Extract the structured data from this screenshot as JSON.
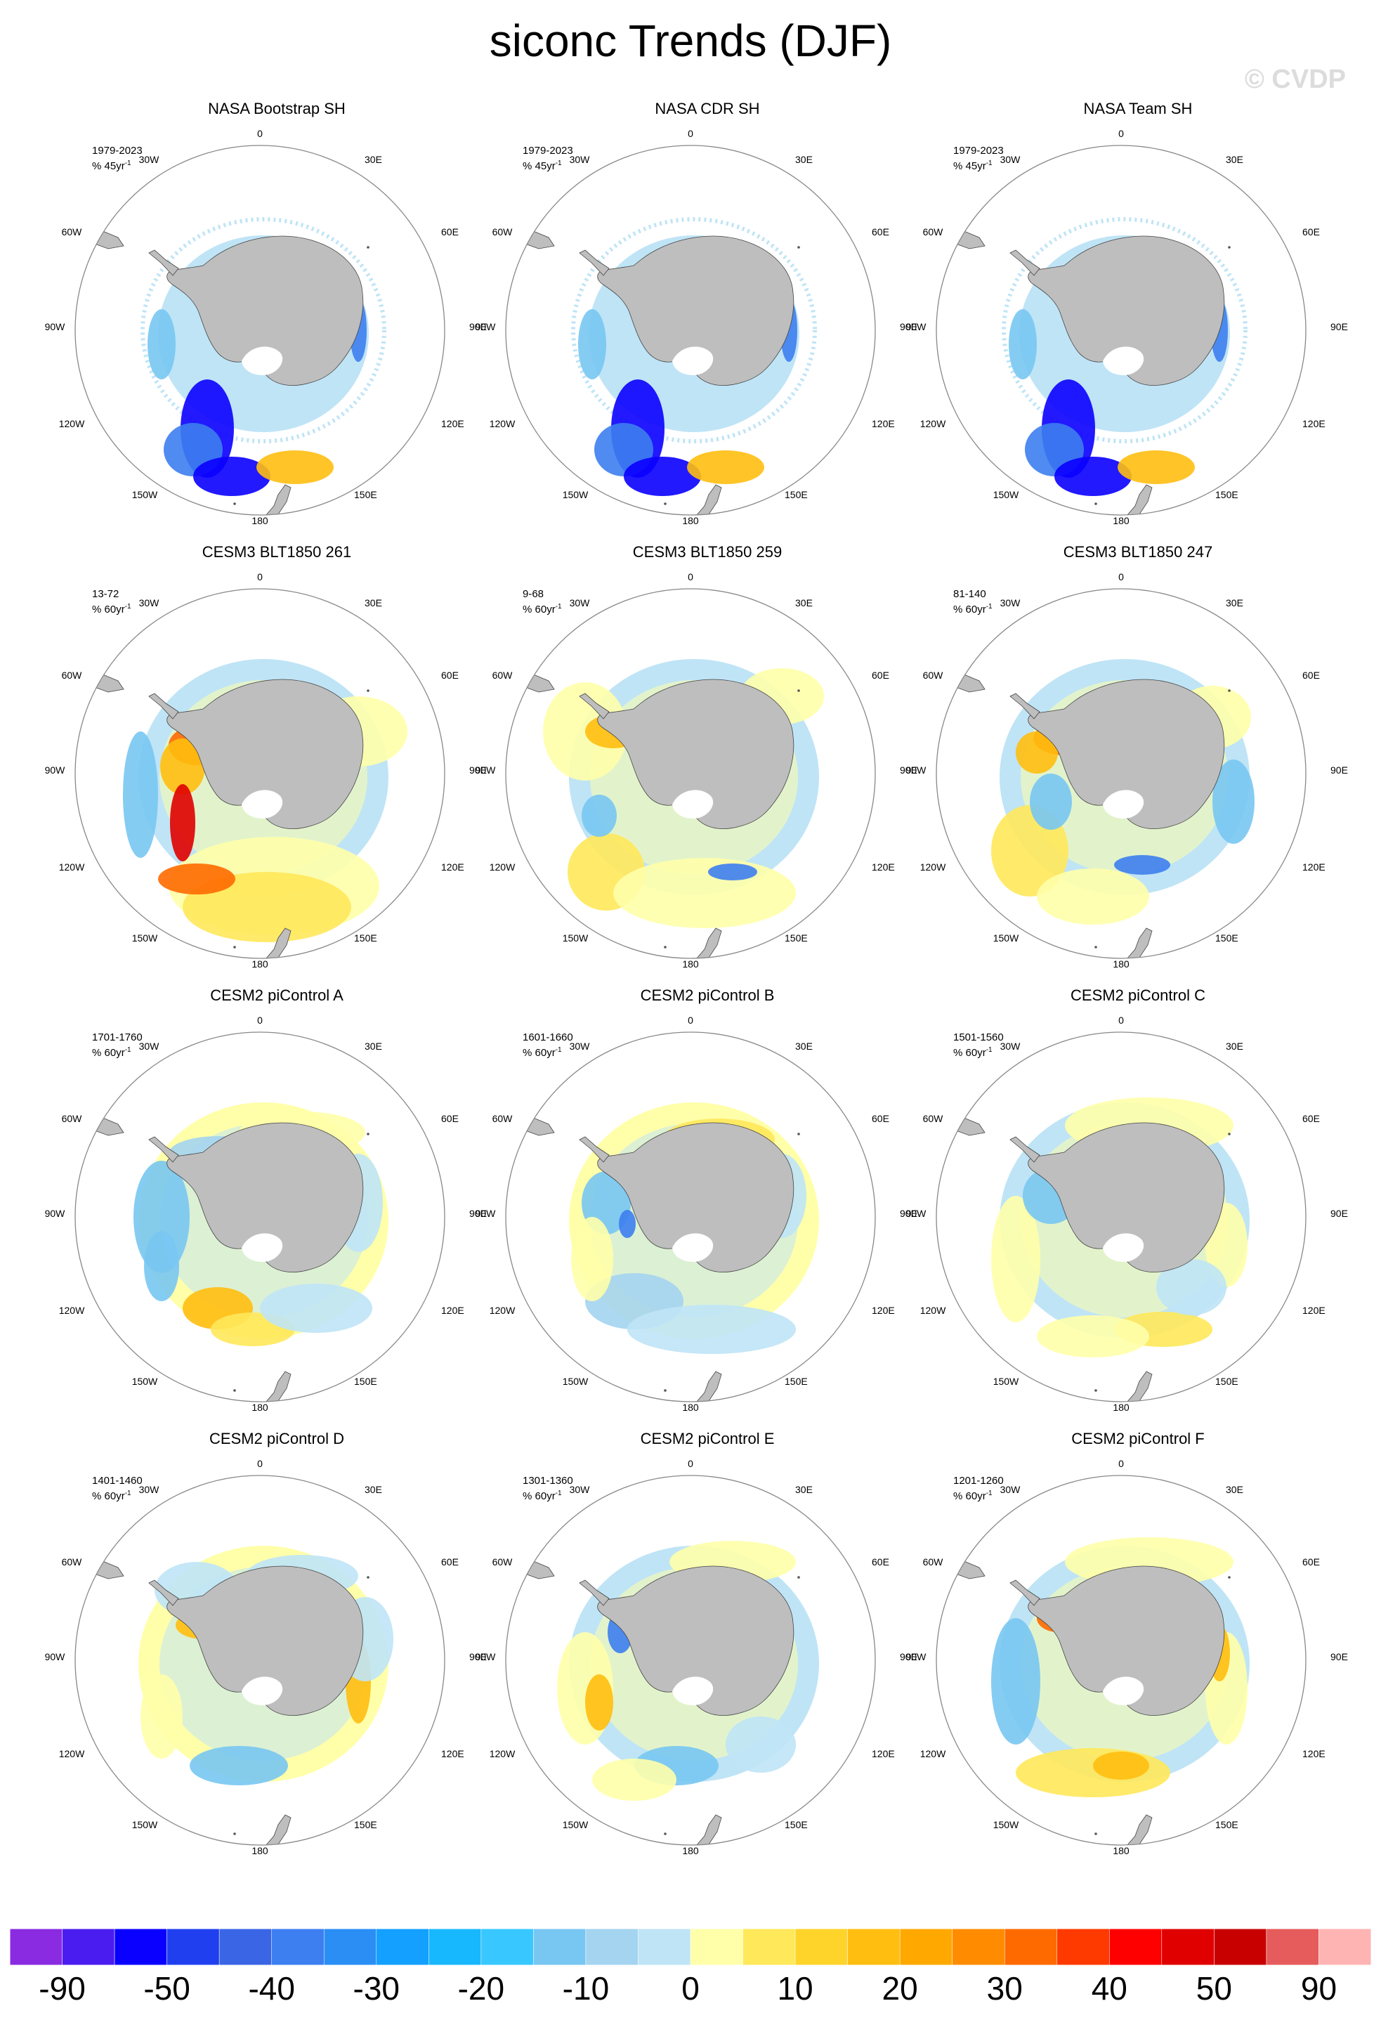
{
  "title": "siconc Trends (DJF)",
  "watermark": "© CVDP",
  "map_labels": {
    "lon_top": "0",
    "lon_30e": "30E",
    "lon_60e": "60E",
    "lon_90e": "90E",
    "lon_120e": "120E",
    "lon_150e": "150E",
    "lon_180": "180",
    "lon_150w": "150W",
    "lon_120w": "120W",
    "lon_90w": "90W",
    "lon_60w": "60W",
    "lon_30w": "30W"
  },
  "panels": [
    {
      "title": "NASA Bootstrap SH",
      "period": "1979-2023",
      "units": "% 45yr",
      "units_sup": "-1",
      "style": "obs"
    },
    {
      "title": "NASA CDR SH",
      "period": "1979-2023",
      "units": "% 45yr",
      "units_sup": "-1",
      "style": "obs"
    },
    {
      "title": "NASA Team SH",
      "period": "1979-2023",
      "units": "% 45yr",
      "units_sup": "-1",
      "style": "obs"
    },
    {
      "title": "CESM3 BLT1850 261",
      "period": "13-72",
      "units": "% 60yr",
      "units_sup": "-1",
      "style": "m1"
    },
    {
      "title": "CESM3 BLT1850 259",
      "period": "9-68",
      "units": "% 60yr",
      "units_sup": "-1",
      "style": "m2"
    },
    {
      "title": "CESM3 BLT1850 247",
      "period": "81-140",
      "units": "% 60yr",
      "units_sup": "-1",
      "style": "m3"
    },
    {
      "title": "CESM2 piControl A",
      "period": "1701-1760",
      "units": "% 60yr",
      "units_sup": "-1",
      "style": "pA"
    },
    {
      "title": "CESM2 piControl B",
      "period": "1601-1660",
      "units": "% 60yr",
      "units_sup": "-1",
      "style": "pB"
    },
    {
      "title": "CESM2 piControl C",
      "period": "1501-1560",
      "units": "% 60yr",
      "units_sup": "-1",
      "style": "pC"
    },
    {
      "title": "CESM2 piControl D",
      "period": "1401-1460",
      "units": "% 60yr",
      "units_sup": "-1",
      "style": "pD"
    },
    {
      "title": "CESM2 piControl E",
      "period": "1301-1360",
      "units": "% 60yr",
      "units_sup": "-1",
      "style": "pE"
    },
    {
      "title": "CESM2 piControl F",
      "period": "1201-1260",
      "units": "% 60yr",
      "units_sup": "-1",
      "style": "pF"
    }
  ],
  "colorbar": {
    "colors": [
      "#8a2be2",
      "#4b1cf0",
      "#0a00ff",
      "#2040f0",
      "#3a66e6",
      "#3d7ef0",
      "#2a8ef5",
      "#14a0ff",
      "#18b8ff",
      "#38c8ff",
      "#78c6f2",
      "#a4d4f0",
      "#bfe4f6",
      "#ffffaa",
      "#ffe85a",
      "#ffd42a",
      "#ffbe10",
      "#ffa800",
      "#ff8c00",
      "#ff6a00",
      "#ff3a00",
      "#ff0000",
      "#e00000",
      "#c80000",
      "#e65c5c",
      "#ffb4b4"
    ],
    "labels": [
      "-90",
      "-50",
      "-40",
      "-30",
      "-20",
      "-10",
      "0",
      "10",
      "20",
      "30",
      "40",
      "50",
      "90"
    ],
    "label_boundaries": [
      1,
      3,
      5,
      7,
      9,
      11,
      13,
      15,
      17,
      19,
      21,
      23,
      25
    ]
  }
}
